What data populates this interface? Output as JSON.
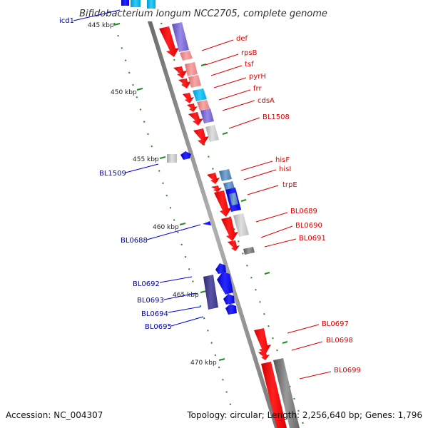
{
  "title": "Bifidobacterium longum NCC2705, complete genome",
  "footer": {
    "accession": "Accession: NC_004307",
    "topology": "Topology: circular; Length: 2,256,640 bp; Genes: 1,796"
  },
  "scale_labels": [
    "445 kbp",
    "450 kbp",
    "455 kbp",
    "460 kbp",
    "465 kbp",
    "470 kbp"
  ],
  "genes_forward": [
    "def",
    "rpsB",
    "tsf",
    "pyrH",
    "frr",
    "cdsA",
    "BL1508",
    "hisF",
    "hisI",
    "trpE",
    "BL0689",
    "BL0690",
    "BL0691",
    "BL0697",
    "BL0698",
    "BL0699"
  ],
  "genes_reverse": [
    "icd1",
    "BL1509",
    "BL0688",
    "BL0692",
    "BL0693",
    "BL0694",
    "BL0695"
  ],
  "colors": {
    "forward_gene": "#ff0000",
    "reverse_gene": "#0000ff",
    "forward_label": "#dd0000",
    "reverse_label": "#0000aa",
    "backbone": "#888888",
    "tick": "#228B22"
  }
}
